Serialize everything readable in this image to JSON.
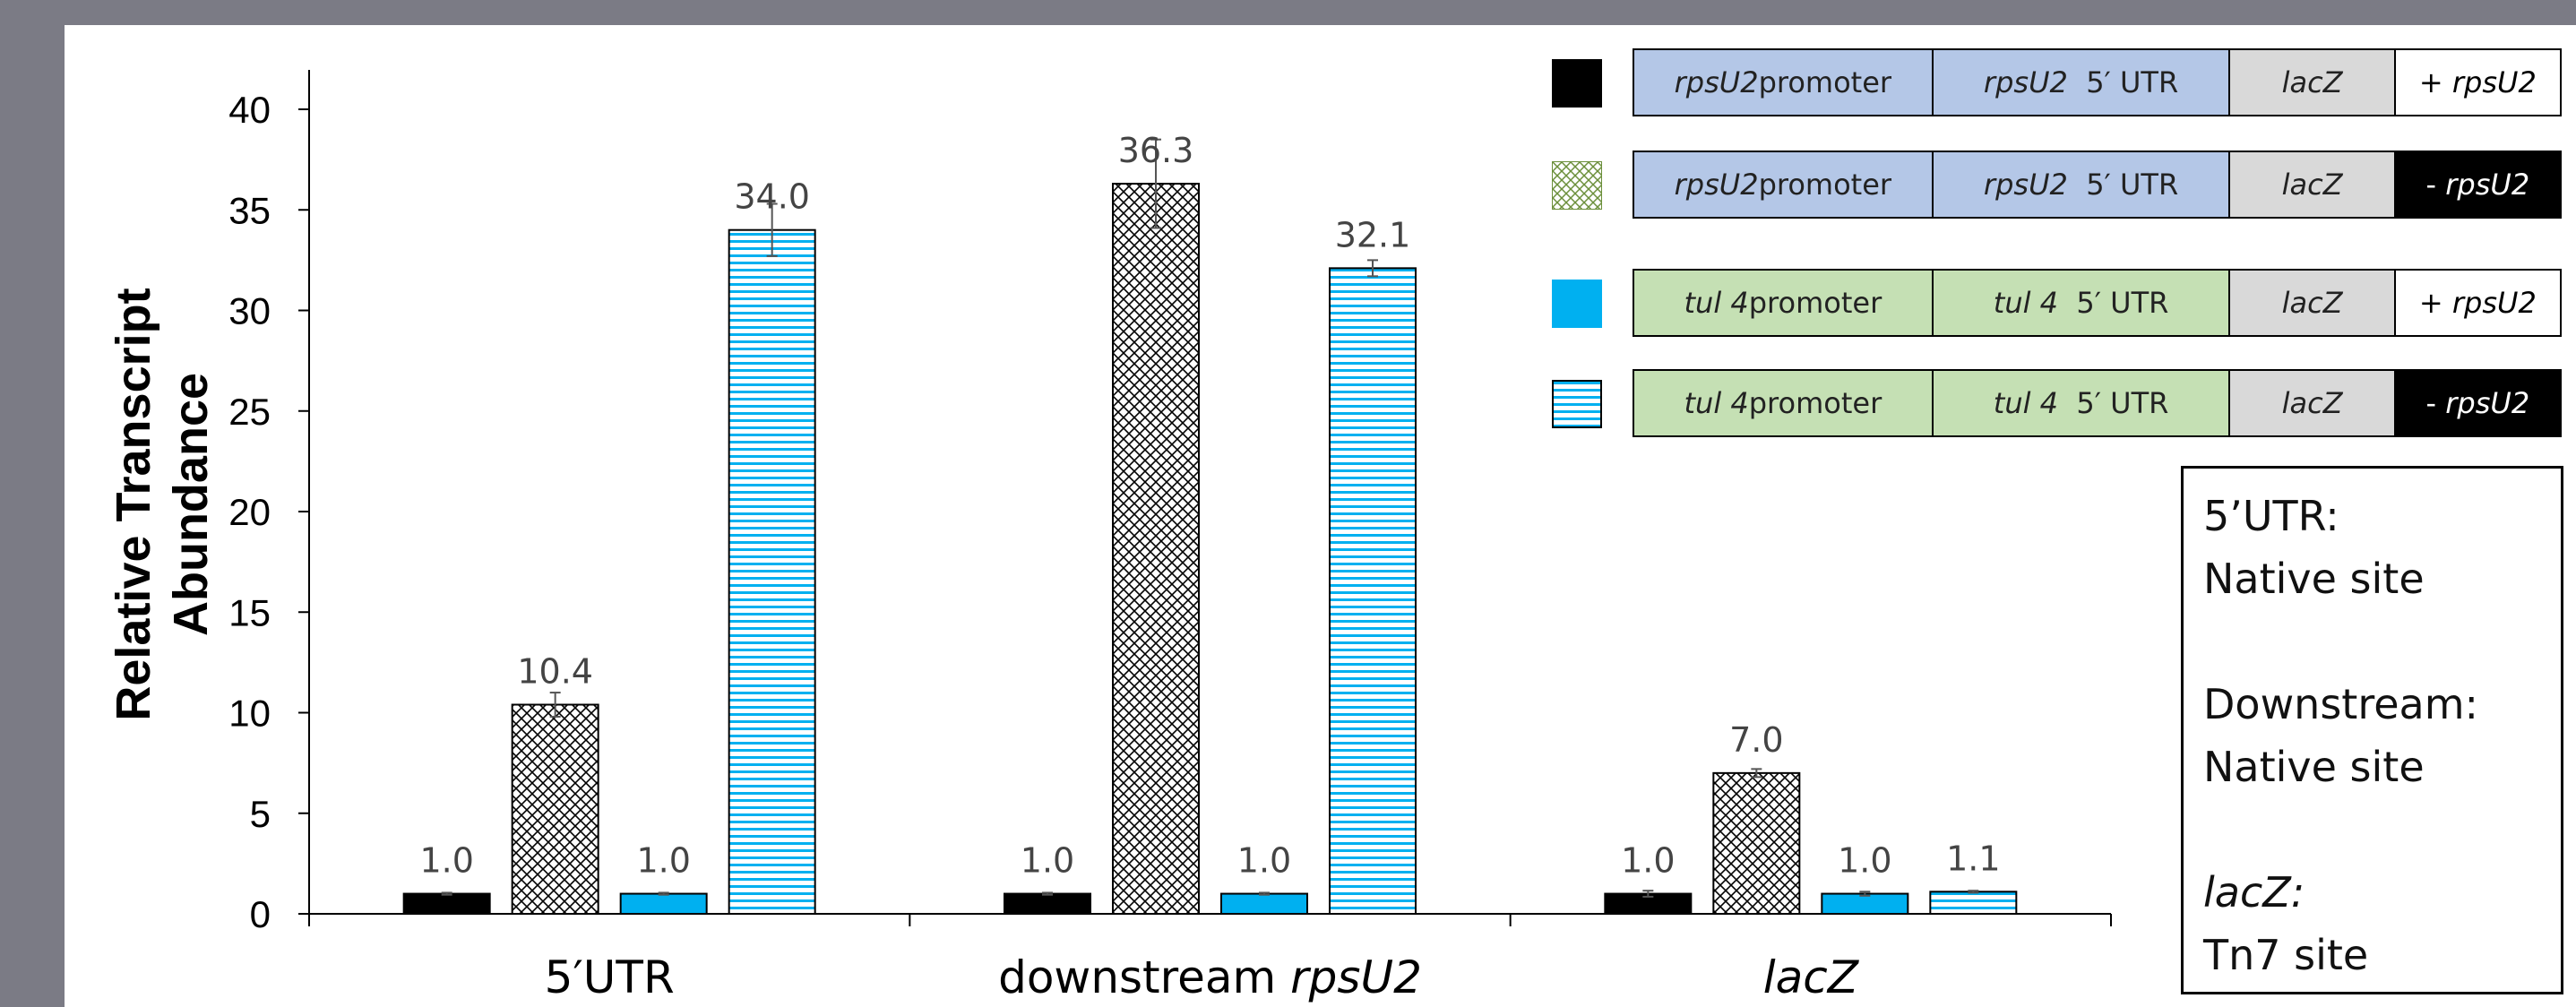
{
  "chart_data": {
    "type": "bar",
    "ylabel": "Relative Transcript Abundance",
    "ylabel_lines": [
      "Relative Transcript",
      "Abundance"
    ],
    "ylim": [
      0,
      40
    ],
    "yticks": [
      0,
      5,
      10,
      15,
      20,
      25,
      30,
      35,
      40
    ],
    "groups": [
      {
        "label": "5′UTR",
        "label_plain": "5′UTR",
        "label_italic": ""
      },
      {
        "label": "downstream rpsU2",
        "label_plain": "downstream ",
        "label_italic": "rpsU2"
      },
      {
        "label": "lacZ",
        "label_plain": "",
        "label_italic": "lacZ"
      }
    ],
    "series": [
      {
        "name": "rpsU2 promoter, rpsU2 5′ UTR, lacZ, + rpsU2",
        "fill": "solid",
        "color": "#000000",
        "values": [
          1.0,
          1.0,
          1.0
        ],
        "errors": [
          0.05,
          0.05,
          0.15
        ],
        "labels": [
          "1.0",
          "1.0",
          "1.0"
        ]
      },
      {
        "name": "rpsU2 promoter, rpsU2 5′ UTR, lacZ, - rpsU2",
        "fill": "crosshatch",
        "color": "#000000",
        "values": [
          10.4,
          36.3,
          7.0
        ],
        "errors": [
          0.6,
          2.2,
          0.2
        ],
        "labels": [
          "10.4",
          "36.3",
          "7.0"
        ]
      },
      {
        "name": "tul 4 promoter, tul 4 5′ UTR, lacZ, + rpsU2",
        "fill": "solid",
        "color": "#00b0f0",
        "values": [
          1.0,
          1.0,
          1.0
        ],
        "errors": [
          0.05,
          0.05,
          0.1
        ],
        "labels": [
          "1.0",
          "1.0",
          "1.0"
        ]
      },
      {
        "name": "tul 4 promoter, tul 4 5′ UTR, lacZ, - rpsU2",
        "fill": "hlines",
        "color": "#00b0f0",
        "values": [
          34.0,
          32.1,
          1.1
        ],
        "errors": [
          1.3,
          0.4,
          0.05
        ],
        "labels": [
          "34.0",
          "32.1",
          "1.1"
        ]
      }
    ],
    "grid": false,
    "legend": "top-right"
  },
  "legend": {
    "rows": [
      {
        "segments": [
          "rpsU2",
          " promoter",
          "rpsU2",
          "  5′ UTR",
          "lacZ",
          "+ ",
          "rpsU2"
        ]
      },
      {
        "segments": [
          "rpsU2",
          " promoter",
          "rpsU2",
          "  5′ UTR",
          "lacZ",
          "- ",
          "rpsU2"
        ]
      },
      {
        "segments": [
          "tul 4",
          " promoter",
          "tul 4",
          "  5′ UTR",
          "lacZ",
          "+ ",
          "rpsU2"
        ]
      },
      {
        "segments": [
          "tul 4",
          " promoter",
          "tul 4",
          "  5′ UTR",
          "lacZ",
          "- ",
          "rpsU2"
        ]
      }
    ]
  },
  "notes": {
    "utr_heading": "5’UTR:",
    "utr_site": "Native site",
    "downstream_heading": "Downstream:",
    "downstream_site": "Native site",
    "lacz_heading": "lacZ:",
    "lacz_site": "Tn7 site"
  }
}
